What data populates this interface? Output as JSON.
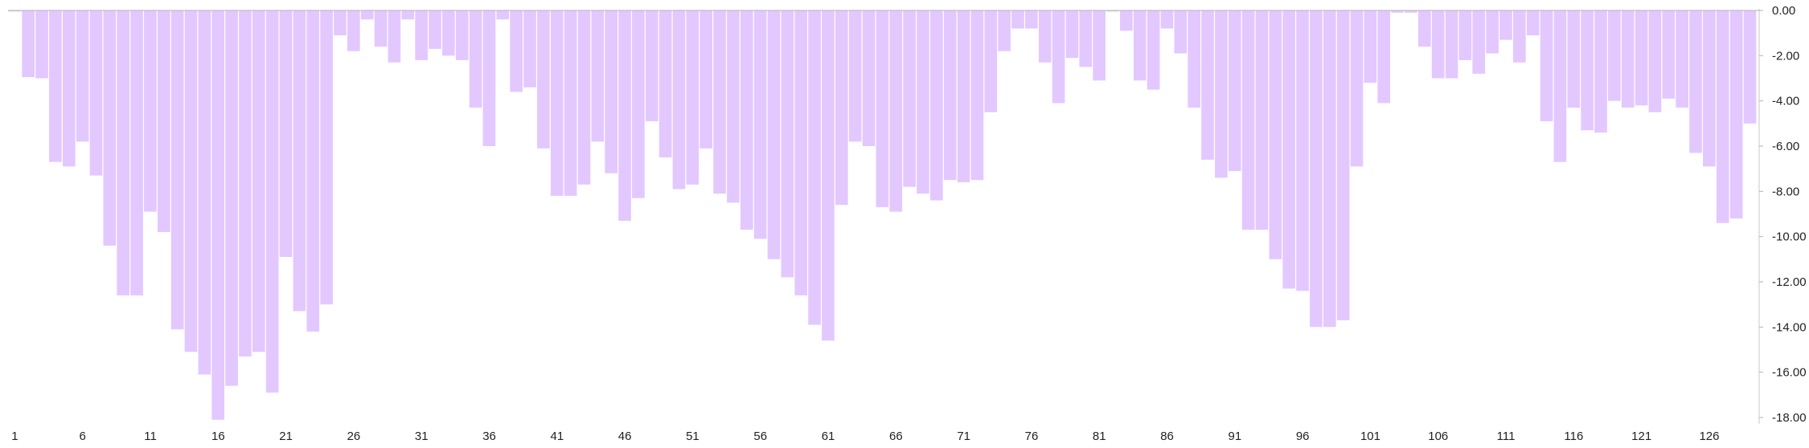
{
  "colors": {
    "bar_fill": "#e3c8ff",
    "axis": "#c8c8c8",
    "tick_text": "#222222",
    "background": "#ffffff"
  },
  "chart_data": {
    "type": "bar",
    "x_start": 1,
    "x_tick_labels": [
      "1",
      "6",
      "11",
      "16",
      "21",
      "26",
      "31",
      "36",
      "41",
      "46",
      "51",
      "56",
      "61",
      "66",
      "71",
      "76",
      "81",
      "86",
      "91",
      "96",
      "101",
      "106",
      "111",
      "116",
      "121",
      "126"
    ],
    "y_tick_labels": [
      "0.00",
      "-2.00",
      "-4.00",
      "-6.00",
      "-8.00",
      "-10.00",
      "-12.00",
      "-14.00",
      "-16.00",
      "-18.00"
    ],
    "ylim": [
      -18,
      0
    ],
    "y_axis_position": "right",
    "grid": false,
    "legend": "none",
    "values": [
      -0.05,
      -2.95,
      -3.0,
      -6.7,
      -6.9,
      -5.8,
      -7.3,
      -10.4,
      -12.6,
      -12.6,
      -8.9,
      -9.8,
      -14.1,
      -15.1,
      -16.1,
      -18.1,
      -16.6,
      -15.3,
      -15.1,
      -16.9,
      -10.9,
      -13.3,
      -14.2,
      -13.0,
      -1.1,
      -1.8,
      -0.4,
      -1.6,
      -2.3,
      -0.4,
      -2.2,
      -1.7,
      -2.0,
      -2.2,
      -4.3,
      -6.0,
      -0.4,
      -3.6,
      -3.4,
      -6.1,
      -8.2,
      -8.2,
      -7.7,
      -5.8,
      -7.2,
      -9.3,
      -8.3,
      -4.9,
      -6.5,
      -7.9,
      -7.7,
      -6.1,
      -8.1,
      -8.5,
      -9.7,
      -10.1,
      -11.0,
      -11.8,
      -12.6,
      -13.9,
      -14.6,
      -8.6,
      -5.8,
      -6.0,
      -8.7,
      -8.9,
      -7.8,
      -8.1,
      -8.4,
      -7.5,
      -7.6,
      -7.5,
      -4.5,
      -1.8,
      -0.8,
      -0.8,
      -2.3,
      -4.1,
      -2.1,
      -2.5,
      -3.1,
      -0.05,
      -0.9,
      -3.1,
      -3.5,
      -0.8,
      -1.9,
      -4.3,
      -6.6,
      -7.4,
      -7.1,
      -9.7,
      -9.7,
      -11.0,
      -12.3,
      -12.4,
      -14.0,
      -14.0,
      -13.7,
      -6.9,
      -3.2,
      -4.1,
      -0.1,
      -0.1,
      -1.6,
      -3.0,
      -3.0,
      -2.2,
      -2.8,
      -1.9,
      -1.3,
      -2.3,
      -1.1,
      -4.9,
      -6.7,
      -4.3,
      -5.3,
      -5.4,
      -4.0,
      -4.3,
      -4.2,
      -4.5,
      -3.9,
      -4.3,
      -6.3,
      -6.9,
      -9.4,
      -9.2,
      -5.0
    ]
  }
}
